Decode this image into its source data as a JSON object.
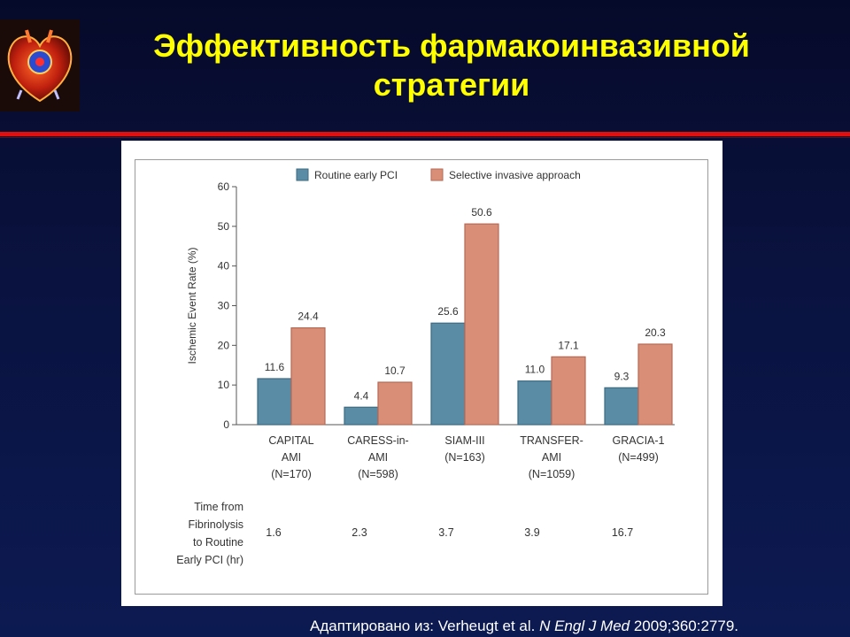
{
  "slide": {
    "title_line1": "Эффективность фармакоинвазивной",
    "title_line2": "стратегии",
    "citation_prefix": "Адаптировано из: Verheugt et al. ",
    "citation_journal": "N Engl J Med",
    "citation_suffix": " 2009;360:2779."
  },
  "colors": {
    "routine": "#5b8ca5",
    "selective": "#d98e78",
    "title": "#ffff00",
    "divider": "#e01010"
  },
  "chart_data": {
    "type": "bar",
    "ylabel": "Ischemic Event Rate (%)",
    "ylim": [
      0,
      60
    ],
    "yticks": [
      0,
      10,
      20,
      30,
      40,
      50,
      60
    ],
    "legend_position": "top",
    "categories": [
      [
        "CAPITAL",
        "AMI",
        "(N=170)"
      ],
      [
        "CARESS-in-",
        "AMI",
        "(N=598)"
      ],
      [
        "SIAM-III",
        "(N=163)"
      ],
      [
        "TRANSFER-",
        "AMI",
        "(N=1059)"
      ],
      [
        "GRACIA-1",
        "(N=499)"
      ]
    ],
    "series": [
      {
        "name": "Routine early PCI",
        "values": [
          11.6,
          4.4,
          25.6,
          11.0,
          9.3
        ],
        "labels": [
          "11.6",
          "4.4",
          "25.6",
          "11.0",
          "9.3"
        ]
      },
      {
        "name": "Selective invasive approach",
        "values": [
          24.4,
          10.7,
          50.6,
          17.1,
          20.3
        ],
        "labels": [
          "24.4",
          "10.7",
          "50.6",
          "17.1",
          "20.3"
        ]
      }
    ],
    "time_row": {
      "label_lines": [
        "Time from",
        "Fibrinolysis",
        "to Routine",
        "Early PCI (hr)"
      ],
      "values": [
        "1.6",
        "2.3",
        "3.7",
        "3.9",
        "16.7"
      ]
    }
  }
}
